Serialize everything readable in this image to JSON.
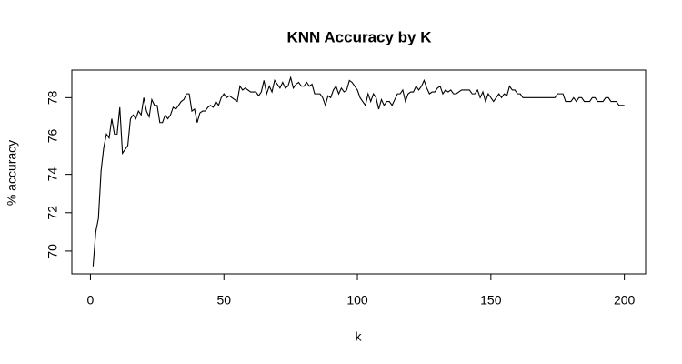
{
  "chart_data": {
    "type": "line",
    "title": "KNN Accuracy by K",
    "x_label": "k",
    "y_label": "% accuracy",
    "color": "#000000",
    "x": [
      1,
      2,
      3,
      4,
      5,
      6,
      7,
      8,
      9,
      10,
      11,
      12,
      13,
      14,
      15,
      16,
      17,
      18,
      19,
      20,
      21,
      22,
      23,
      24,
      25,
      26,
      27,
      28,
      29,
      30,
      31,
      32,
      33,
      34,
      35,
      36,
      37,
      38,
      39,
      40,
      41,
      42,
      43,
      44,
      45,
      46,
      47,
      48,
      49,
      50,
      51,
      52,
      53,
      54,
      55,
      56,
      57,
      58,
      59,
      60,
      61,
      62,
      63,
      64,
      65,
      66,
      67,
      68,
      69,
      70,
      71,
      72,
      73,
      74,
      75,
      76,
      77,
      78,
      79,
      80,
      81,
      82,
      83,
      84,
      85,
      86,
      87,
      88,
      89,
      90,
      91,
      92,
      93,
      94,
      95,
      96,
      97,
      98,
      99,
      100,
      101,
      102,
      103,
      104,
      105,
      106,
      107,
      108,
      109,
      110,
      111,
      112,
      113,
      114,
      115,
      116,
      117,
      118,
      119,
      120,
      121,
      122,
      123,
      124,
      125,
      126,
      127,
      128,
      129,
      130,
      131,
      132,
      133,
      134,
      135,
      136,
      137,
      138,
      139,
      140,
      141,
      142,
      143,
      144,
      145,
      146,
      147,
      148,
      149,
      150,
      151,
      152,
      153,
      154,
      155,
      156,
      157,
      158,
      159,
      160,
      161,
      162,
      163,
      164,
      165,
      166,
      167,
      168,
      169,
      170,
      171,
      172,
      173,
      174,
      175,
      176,
      177,
      178,
      179,
      180,
      181,
      182,
      183,
      184,
      185,
      186,
      187,
      188,
      189,
      190,
      191,
      192,
      193,
      194,
      195,
      196,
      197,
      198,
      199,
      200
    ],
    "values": [
      69.2,
      71.0,
      71.7,
      74.2,
      75.4,
      76.1,
      75.9,
      76.9,
      76.1,
      76.1,
      77.5,
      75.1,
      75.3,
      75.5,
      76.9,
      77.1,
      76.9,
      77.3,
      77.1,
      78.0,
      77.3,
      77.0,
      77.9,
      77.6,
      77.6,
      76.7,
      76.7,
      77.1,
      76.9,
      77.1,
      77.5,
      77.4,
      77.6,
      77.8,
      77.9,
      78.2,
      78.2,
      77.3,
      77.4,
      76.7,
      77.2,
      77.3,
      77.3,
      77.5,
      77.6,
      77.5,
      77.8,
      77.6,
      78.0,
      78.2,
      78.0,
      78.1,
      78.0,
      77.9,
      77.8,
      78.6,
      78.4,
      78.5,
      78.4,
      78.3,
      78.3,
      78.3,
      78.1,
      78.3,
      78.9,
      78.2,
      78.6,
      78.3,
      78.9,
      78.7,
      78.5,
      78.8,
      78.5,
      78.6,
      79.05,
      78.5,
      78.7,
      78.8,
      78.6,
      78.6,
      78.8,
      78.6,
      78.7,
      78.2,
      78.2,
      78.2,
      78.0,
      77.6,
      78.1,
      78.0,
      78.4,
      78.6,
      78.2,
      78.5,
      78.3,
      78.4,
      78.9,
      78.8,
      78.6,
      78.4,
      78.0,
      77.8,
      77.6,
      78.2,
      77.8,
      78.2,
      78.0,
      77.4,
      77.9,
      77.6,
      77.8,
      77.8,
      77.6,
      77.9,
      78.2,
      78.2,
      78.4,
      77.8,
      78.2,
      78.3,
      78.3,
      78.6,
      78.4,
      78.6,
      78.9,
      78.5,
      78.2,
      78.3,
      78.3,
      78.5,
      78.6,
      78.2,
      78.4,
      78.3,
      78.4,
      78.2,
      78.2,
      78.3,
      78.4,
      78.4,
      78.4,
      78.4,
      78.2,
      78.2,
      78.4,
      78.0,
      78.3,
      77.8,
      78.2,
      78.0,
      77.8,
      78.0,
      78.2,
      78.0,
      78.2,
      78.1,
      78.6,
      78.4,
      78.4,
      78.2,
      78.2,
      78.0,
      78.0,
      78.0,
      78.0,
      78.0,
      78.0,
      78.0,
      78.0,
      78.0,
      78.0,
      78.0,
      78.0,
      78.0,
      78.2,
      78.2,
      78.2,
      77.8,
      77.8,
      77.8,
      78.0,
      77.8,
      78.0,
      78.0,
      77.8,
      77.8,
      77.8,
      78.0,
      78.0,
      77.8,
      77.8,
      77.8,
      78.0,
      78.0,
      77.8,
      77.8,
      77.8,
      77.6,
      77.6,
      77.6
    ],
    "xlim": [
      -6.96,
      207.96
    ],
    "xticks": [
      0,
      50,
      100,
      150,
      200
    ],
    "ylim": [
      68.81,
      79.44
    ],
    "yticks": [
      70,
      72,
      74,
      76,
      78
    ]
  }
}
